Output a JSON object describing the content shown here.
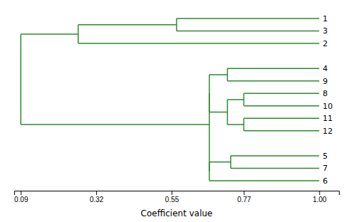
{
  "chart_data": {
    "type": "dendrogram",
    "xlabel": "Coefficient value",
    "xlim": [
      0.07,
      1.06
    ],
    "xticks": [
      0.09,
      0.32,
      0.55,
      0.77,
      {
        "value": 1.0,
        "label": "1.00"
      }
    ],
    "ylim": [
      14.8,
      0.2
    ],
    "tick_labels": "x",
    "color": "#2d8a2d",
    "leaf_labels": [
      "1",
      "3",
      "2",
      "4",
      "9",
      "8",
      "10",
      "11",
      "12",
      "5",
      "7",
      "6"
    ],
    "leaf_y": [
      1,
      2,
      3,
      5,
      6,
      7,
      8,
      9,
      10,
      12,
      13,
      14
    ],
    "segments": [
      {
        "x1": 1.0,
        "y1": 1,
        "x2": 0.565,
        "y2": 1
      },
      {
        "x1": 1.0,
        "y1": 2,
        "x2": 0.565,
        "y2": 2
      },
      {
        "x1": 0.565,
        "y1": 1,
        "x2": 0.565,
        "y2": 2
      },
      {
        "x1": 0.565,
        "y1": 1.5,
        "x2": 0.265,
        "y2": 1.5
      },
      {
        "x1": 1.0,
        "y1": 3,
        "x2": 0.265,
        "y2": 3
      },
      {
        "x1": 0.265,
        "y1": 1.5,
        "x2": 0.265,
        "y2": 3
      },
      {
        "x1": 0.265,
        "y1": 2.25,
        "x2": 0.09,
        "y2": 2.25
      },
      {
        "x1": 0.09,
        "y1": 2.25,
        "x2": 0.09,
        "y2": 9.5
      },
      {
        "x1": 1.0,
        "y1": 5,
        "x2": 0.72,
        "y2": 5
      },
      {
        "x1": 1.0,
        "y1": 6,
        "x2": 0.72,
        "y2": 6
      },
      {
        "x1": 0.72,
        "y1": 5,
        "x2": 0.72,
        "y2": 6
      },
      {
        "x1": 0.72,
        "y1": 5.5,
        "x2": 0.665,
        "y2": 5.5
      },
      {
        "x1": 1.0,
        "y1": 7,
        "x2": 0.77,
        "y2": 7
      },
      {
        "x1": 1.0,
        "y1": 8,
        "x2": 0.77,
        "y2": 8
      },
      {
        "x1": 0.77,
        "y1": 7,
        "x2": 0.77,
        "y2": 8
      },
      {
        "x1": 0.77,
        "y1": 7.5,
        "x2": 0.72,
        "y2": 7.5
      },
      {
        "x1": 1.0,
        "y1": 9,
        "x2": 0.77,
        "y2": 9
      },
      {
        "x1": 1.0,
        "y1": 10,
        "x2": 0.77,
        "y2": 10
      },
      {
        "x1": 0.77,
        "y1": 9,
        "x2": 0.77,
        "y2": 10
      },
      {
        "x1": 0.77,
        "y1": 9.5,
        "x2": 0.72,
        "y2": 9.5
      },
      {
        "x1": 0.72,
        "y1": 7.5,
        "x2": 0.72,
        "y2": 9.5
      },
      {
        "x1": 0.72,
        "y1": 8.5,
        "x2": 0.665,
        "y2": 8.5
      },
      {
        "x1": 0.665,
        "y1": 5.5,
        "x2": 0.665,
        "y2": 8.5
      },
      {
        "x1": 1.0,
        "y1": 12,
        "x2": 0.73,
        "y2": 12
      },
      {
        "x1": 1.0,
        "y1": 13,
        "x2": 0.73,
        "y2": 13
      },
      {
        "x1": 0.73,
        "y1": 12,
        "x2": 0.73,
        "y2": 13
      },
      {
        "x1": 0.73,
        "y1": 12.5,
        "x2": 0.665,
        "y2": 12.5
      },
      {
        "x1": 1.0,
        "y1": 14,
        "x2": 0.665,
        "y2": 14
      },
      {
        "x1": 0.665,
        "y1": 12.5,
        "x2": 0.665,
        "y2": 14
      },
      {
        "x1": 0.665,
        "y1": 7.0,
        "x2": 0.665,
        "y2": 13.25
      },
      {
        "x1": 0.665,
        "y1": 9.5,
        "x2": 0.09,
        "y2": 9.5
      }
    ]
  }
}
